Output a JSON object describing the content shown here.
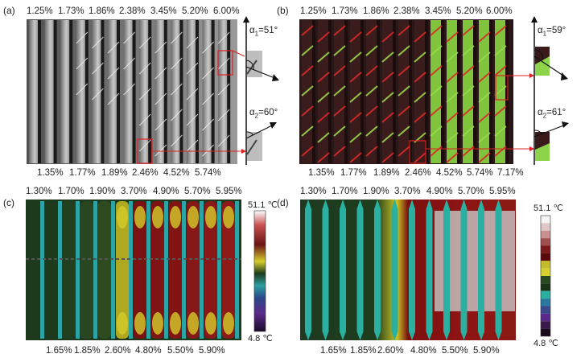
{
  "panels": {
    "a": {
      "label": "(a)",
      "top_strains": [
        "1.25%",
        "1.73%",
        "1.86%",
        "2.38%",
        "3.45%",
        "5.20%",
        "6.00%"
      ],
      "bottom_strains": [
        "1.35%",
        "1.77%",
        "1.89%",
        "2.46%",
        "4.52%",
        "5.74%"
      ],
      "alpha1": {
        "sym": "α",
        "sub": "1",
        "val": "=51°"
      },
      "alpha2": {
        "sym": "α",
        "sub": "2",
        "val": "=60°"
      }
    },
    "b": {
      "label": "(b)",
      "top_strains": [
        "1.25%",
        "1.73%",
        "1.86%",
        "2.38%",
        "3.45%",
        "5.20%",
        "6.00%"
      ],
      "bottom_strains": [
        "1.35%",
        "1.77%",
        "1.89%",
        "2.46%",
        "4.52%",
        "5.74%",
        "7.17%"
      ],
      "alpha1": {
        "sym": "α",
        "sub": "1",
        "val": "=59°"
      },
      "alpha2": {
        "sym": "α",
        "sub": "2",
        "val": "=61°"
      }
    },
    "c": {
      "label": "(c)",
      "top_strains": [
        "1.30%",
        "1.70%",
        "1.90%",
        "3.70%",
        "4.90%",
        "5.70%",
        "5.95%"
      ],
      "bottom_strains": [
        "1.65%",
        "1.85%",
        "2.60%",
        "4.80%",
        "5.50%",
        "5.90%"
      ],
      "cbar_max": "51.1 ℃",
      "cbar_min": "4.8 ℃"
    },
    "d": {
      "label": "(d)",
      "top_strains": [
        "1.30%",
        "1.70%",
        "1.90%",
        "3.70%",
        "4.90%",
        "5.70%",
        "5.95%"
      ],
      "bottom_strains": [
        "1.65%",
        "1.85%",
        "2.60%",
        "4.80%",
        "5.50%",
        "5.90%"
      ],
      "cbar_max": "51.1 ℃",
      "cbar_min": "4.8 ℃"
    }
  },
  "colors": {
    "arrow_red": "#e02020",
    "box_red": "#e02020"
  }
}
